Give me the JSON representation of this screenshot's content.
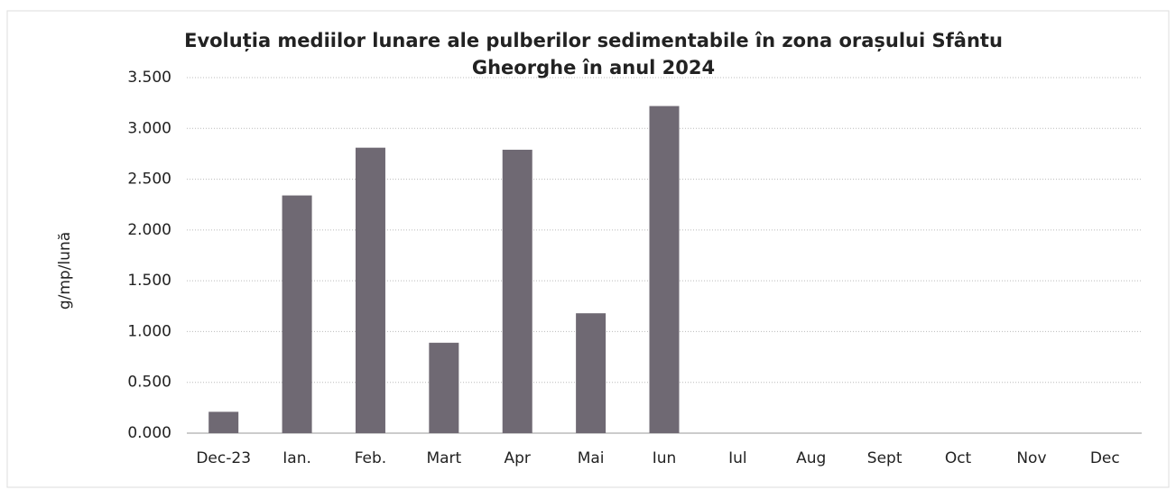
{
  "chart_data": {
    "type": "bar",
    "title": "Evoluția mediilor lunare ale pulberilor sedimentabile în zona orașului Sfântu Gheorghe în anul 2024",
    "y_label": "g/mp/lună",
    "categories": [
      "Dec-23",
      "Ian.",
      "Feb.",
      "Mart",
      "Apr",
      "Mai",
      "Iun",
      "Iul",
      "Aug",
      "Sept",
      "Oct",
      "Nov",
      "Dec"
    ],
    "values": [
      0.21,
      2.34,
      2.81,
      0.89,
      2.79,
      1.18,
      3.22,
      null,
      null,
      null,
      null,
      null,
      null
    ],
    "color": "#6f6973",
    "ylim": [
      0,
      3.5
    ],
    "yticks": [
      {
        "value": 0,
        "label": "0.000"
      },
      {
        "value": 0.5,
        "label": "0.500"
      },
      {
        "value": 1,
        "label": "1.000"
      },
      {
        "value": 1.5,
        "label": "1.500"
      },
      {
        "value": 2,
        "label": "2.000"
      },
      {
        "value": 2.5,
        "label": "2.500"
      },
      {
        "value": 3,
        "label": "3.000"
      },
      {
        "value": 3.5,
        "label": "3.500"
      }
    ],
    "grid": true
  }
}
